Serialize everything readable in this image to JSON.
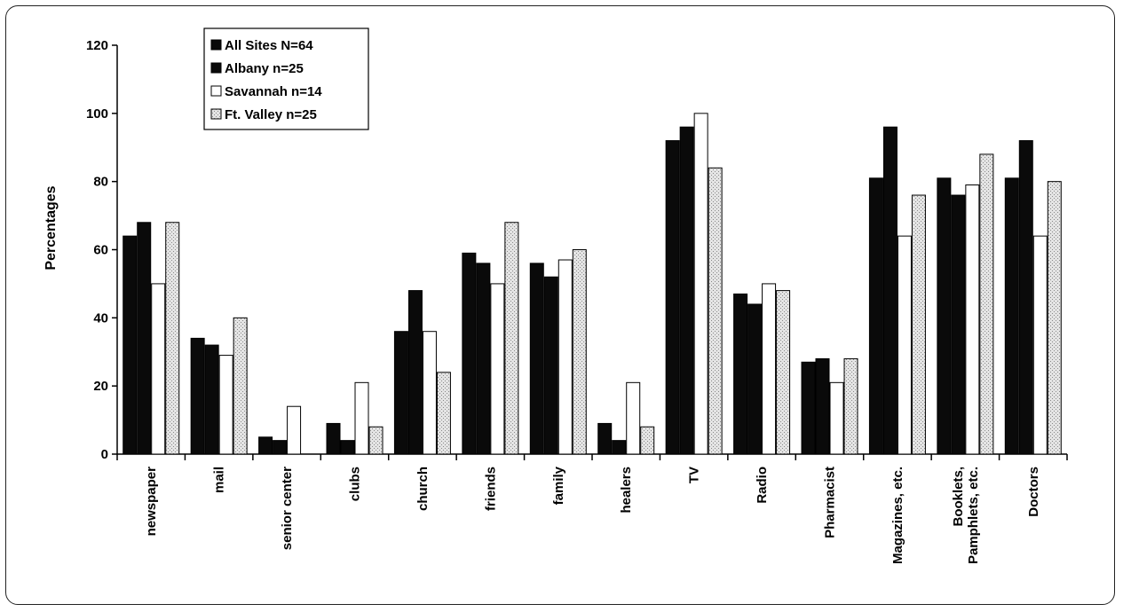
{
  "chart_data": {
    "type": "bar",
    "ylabel": "Percentages",
    "xlabel": "",
    "ylim": [
      0,
      120
    ],
    "yticks": [
      0,
      20,
      40,
      60,
      80,
      100,
      120
    ],
    "grid": false,
    "legend_position": "top-left",
    "categories": [
      [
        "newspaper"
      ],
      [
        "mail"
      ],
      [
        "senior center"
      ],
      [
        "clubs"
      ],
      [
        "church"
      ],
      [
        "friends"
      ],
      [
        "family"
      ],
      [
        "healers"
      ],
      [
        "TV"
      ],
      [
        "Radio"
      ],
      [
        "Pharmacist"
      ],
      [
        "Magazines, etc."
      ],
      [
        "Booklets,",
        "Pamphlets, etc."
      ],
      [
        "Doctors"
      ]
    ],
    "series": [
      {
        "name": "All Sites N=64",
        "color": "#0a0a0a",
        "pattern": "solid",
        "values": [
          64,
          34,
          5,
          9,
          36,
          59,
          56,
          9,
          92,
          47,
          27,
          81,
          81,
          81
        ]
      },
      {
        "name": "Albany n=25",
        "color": "#0a0a0a",
        "pattern": "solid",
        "values": [
          68,
          32,
          4,
          4,
          48,
          56,
          52,
          4,
          96,
          44,
          28,
          96,
          76,
          92
        ]
      },
      {
        "name": "Savannah n=14",
        "color": "#ffffff",
        "pattern": "white",
        "values": [
          50,
          29,
          14,
          21,
          36,
          50,
          57,
          21,
          100,
          50,
          21,
          64,
          79,
          64
        ]
      },
      {
        "name": "Ft. Valley n=25",
        "color": "#dcdcdc",
        "pattern": "stipple",
        "values": [
          68,
          40,
          0,
          8,
          24,
          68,
          60,
          8,
          84,
          48,
          28,
          76,
          88,
          80
        ]
      }
    ]
  }
}
